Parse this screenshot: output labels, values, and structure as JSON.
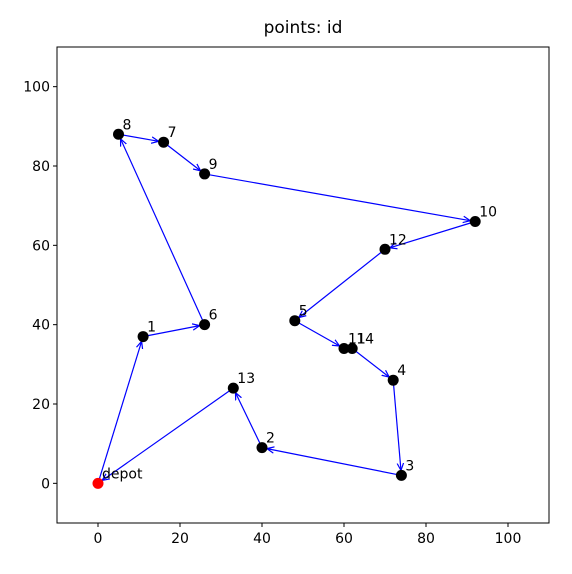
{
  "chart_data": {
    "type": "scatter",
    "title": "points: id",
    "labels": [
      "depot",
      "1",
      "6",
      "8",
      "7",
      "9",
      "10",
      "12",
      "5",
      "11",
      "14",
      "4",
      "3",
      "2",
      "13"
    ],
    "x": [
      0,
      11,
      26,
      5,
      16,
      26,
      92,
      70,
      48,
      60,
      62,
      72,
      74,
      40,
      33
    ],
    "values": [
      0,
      37,
      40,
      88,
      86,
      78,
      66,
      59,
      41,
      34,
      34,
      26,
      2,
      9,
      24
    ],
    "start_color": "#ff0000",
    "point_color": "#000000",
    "route_color": "#0000ff",
    "closed_route": true,
    "xlim": [
      -10,
      110
    ],
    "ylim": [
      -10,
      110
    ],
    "xticks": [
      0,
      20,
      40,
      60,
      80,
      100
    ],
    "yticks": [
      0,
      20,
      40,
      60,
      80,
      100
    ]
  }
}
